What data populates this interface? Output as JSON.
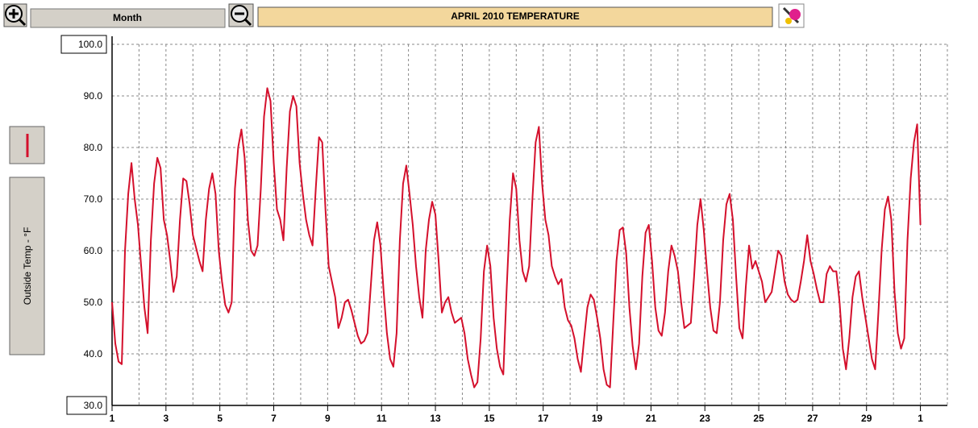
{
  "header": {
    "period": "Month",
    "title": "APRIL  2010   TEMPERATURE"
  },
  "chart_data": {
    "type": "line",
    "ylabel": "Outside Temp - °F",
    "xlim": [
      1,
      32
    ],
    "ylim": [
      30,
      100
    ],
    "xticks": [
      1,
      3,
      5,
      7,
      9,
      11,
      13,
      15,
      17,
      19,
      21,
      23,
      25,
      27,
      29,
      {
        "value": 31,
        "label": "1"
      }
    ],
    "yticks": [
      {
        "value": 30,
        "label": "30.0"
      },
      {
        "value": 40,
        "label": "40.0"
      },
      {
        "value": 50,
        "label": "50.0"
      },
      {
        "value": 60,
        "label": "60.0"
      },
      {
        "value": 70,
        "label": "70.0"
      },
      {
        "value": 80,
        "label": "80.0"
      },
      {
        "value": 90,
        "label": "90.0"
      },
      {
        "value": 100,
        "label": "100.0"
      }
    ],
    "grid": true,
    "x": [
      1,
      1.12,
      1.24,
      1.36,
      1.48,
      1.6,
      1.72,
      1.84,
      1.96,
      2.08,
      2.2,
      2.32,
      2.44,
      2.56,
      2.68,
      2.8,
      2.92,
      3.04,
      3.16,
      3.28,
      3.4,
      3.52,
      3.64,
      3.76,
      3.88,
      4,
      4.12,
      4.24,
      4.36,
      4.48,
      4.6,
      4.72,
      4.84,
      4.96,
      5.08,
      5.2,
      5.32,
      5.44,
      5.56,
      5.68,
      5.8,
      5.92,
      6.04,
      6.16,
      6.28,
      6.4,
      6.52,
      6.64,
      6.76,
      6.88,
      7,
      7.12,
      7.24,
      7.36,
      7.48,
      7.6,
      7.72,
      7.84,
      7.96,
      8.08,
      8.2,
      8.32,
      8.44,
      8.56,
      8.68,
      8.8,
      8.92,
      9.04,
      9.16,
      9.28,
      9.4,
      9.52,
      9.64,
      9.76,
      9.88,
      10,
      10.12,
      10.24,
      10.36,
      10.48,
      10.6,
      10.72,
      10.84,
      10.96,
      11.08,
      11.2,
      11.32,
      11.44,
      11.56,
      11.68,
      11.8,
      11.92,
      12.04,
      12.16,
      12.28,
      12.4,
      12.52,
      12.64,
      12.76,
      12.88,
      13,
      13.12,
      13.24,
      13.36,
      13.48,
      13.6,
      13.72,
      13.84,
      13.96,
      14.08,
      14.2,
      14.32,
      14.44,
      14.56,
      14.68,
      14.8,
      14.92,
      15.04,
      15.16,
      15.28,
      15.4,
      15.52,
      15.64,
      15.76,
      15.88,
      16,
      16.12,
      16.24,
      16.36,
      16.48,
      16.6,
      16.72,
      16.84,
      16.96,
      17.08,
      17.2,
      17.32,
      17.44,
      17.56,
      17.68,
      17.8,
      17.92,
      18.04,
      18.16,
      18.28,
      18.4,
      18.52,
      18.64,
      18.76,
      18.88,
      19,
      19.12,
      19.24,
      19.36,
      19.48,
      19.6,
      19.72,
      19.84,
      19.96,
      20.08,
      20.2,
      20.32,
      20.44,
      20.56,
      20.68,
      20.8,
      20.92,
      21.04,
      21.16,
      21.28,
      21.4,
      21.52,
      21.64,
      21.76,
      21.88,
      22,
      22.12,
      22.24,
      22.36,
      22.48,
      22.6,
      22.72,
      22.84,
      22.96,
      23.08,
      23.2,
      23.32,
      23.44,
      23.56,
      23.68,
      23.8,
      23.92,
      24.04,
      24.16,
      24.28,
      24.4,
      24.52,
      24.64,
      24.76,
      24.88,
      25,
      25.12,
      25.24,
      25.36,
      25.48,
      25.6,
      25.72,
      25.84,
      25.96,
      26.08,
      26.2,
      26.32,
      26.44,
      26.56,
      26.68,
      26.8,
      26.92,
      27.04,
      27.16,
      27.28,
      27.4,
      27.52,
      27.64,
      27.76,
      27.88,
      28,
      28.12,
      28.24,
      28.36,
      28.48,
      28.6,
      28.72,
      28.84,
      28.96,
      29.08,
      29.2,
      29.32,
      29.44,
      29.56,
      29.68,
      29.8,
      29.92,
      30.04,
      30.16,
      30.28,
      30.4,
      30.52,
      30.64,
      30.76,
      30.88,
      31
    ],
    "series": [
      {
        "name": "Outside Temp - °F",
        "color": "#d4102c",
        "values": [
          50,
          42,
          38.5,
          38,
          60,
          71,
          77,
          70,
          65,
          57,
          49,
          44,
          62,
          73,
          78,
          76,
          66,
          63,
          58,
          52,
          55,
          66,
          74,
          73.5,
          69,
          63,
          60.5,
          58,
          56,
          66,
          72,
          75,
          71,
          60,
          54,
          49.5,
          48,
          50,
          72,
          80,
          83.5,
          78,
          66,
          60,
          59,
          61,
          72,
          86,
          91.5,
          89,
          77,
          68,
          66,
          62,
          76,
          87,
          90,
          88,
          77,
          71,
          66,
          63,
          61,
          72,
          82,
          81,
          68,
          57,
          54,
          51,
          45,
          47,
          50,
          50.5,
          48.5,
          46,
          43.5,
          42,
          42.5,
          44,
          53,
          62,
          65.5,
          61,
          52,
          44,
          39,
          37.5,
          44,
          62,
          73,
          76.5,
          71,
          65,
          57,
          51,
          47,
          60,
          66,
          69.5,
          67,
          58,
          48,
          50,
          51,
          48,
          46,
          46.5,
          47,
          44,
          39,
          36,
          33.5,
          34.5,
          43,
          56,
          61,
          57,
          47,
          41,
          37.5,
          36,
          52,
          66,
          75,
          72,
          62,
          56,
          54,
          57,
          70,
          81,
          84,
          73,
          66,
          63,
          57,
          55,
          53.5,
          54.5,
          49,
          46.5,
          45.5,
          43,
          39,
          36.5,
          43,
          49,
          51.5,
          50.5,
          47,
          43,
          37,
          34,
          33.5,
          46,
          58,
          64,
          64.5,
          59.5,
          49,
          41.5,
          37,
          42,
          55,
          63.5,
          65,
          58,
          49,
          44.5,
          43.5,
          48,
          56,
          61,
          59,
          56,
          50,
          45,
          45.5,
          46,
          55,
          65,
          70,
          64,
          56,
          49,
          44.5,
          44,
          50,
          62,
          69,
          71,
          66,
          55,
          45,
          43,
          53,
          61,
          56.5,
          58,
          56,
          54,
          50,
          51,
          52,
          56,
          60,
          59,
          54,
          51.5,
          50.5,
          50,
          50.5,
          54,
          58,
          63,
          58,
          55.5,
          52.5,
          50,
          50,
          55.5,
          57,
          56,
          56,
          50,
          41,
          37,
          43,
          51,
          55,
          56,
          51,
          47,
          43,
          39,
          37,
          48,
          60,
          68,
          70.5,
          66,
          52,
          44,
          41,
          43,
          62,
          74,
          81,
          84.5,
          65
        ]
      }
    ]
  }
}
